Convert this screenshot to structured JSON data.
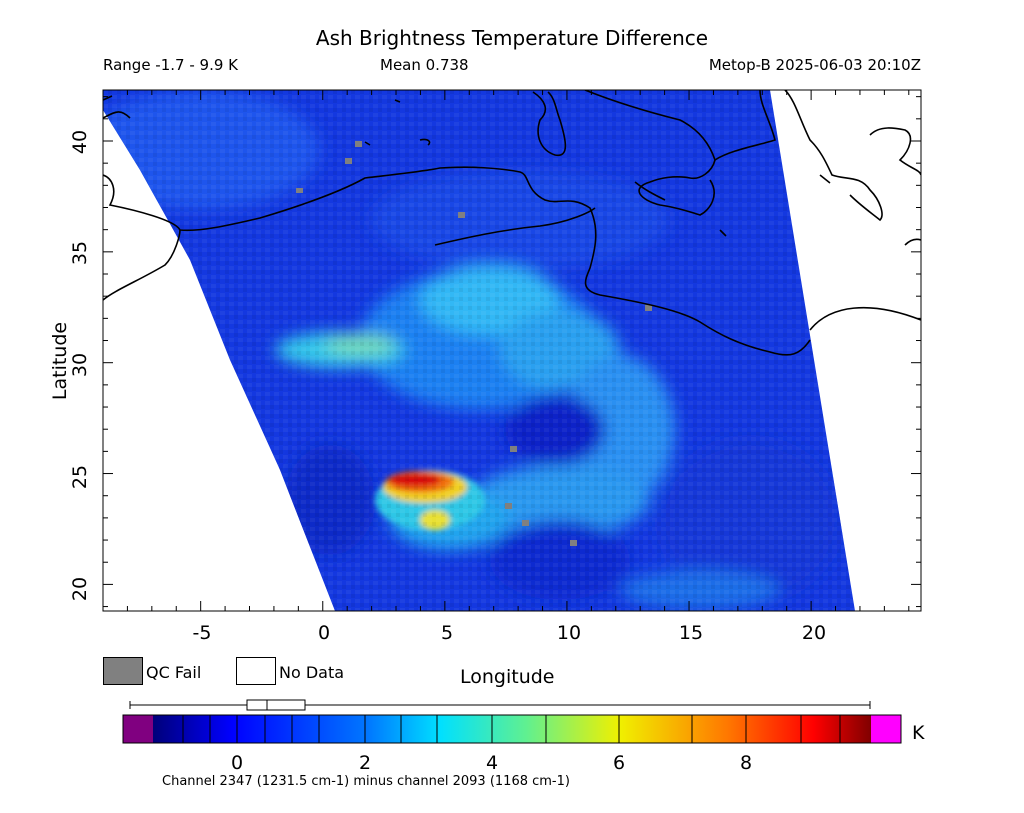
{
  "title": "Ash Brightness Temperature Difference",
  "subtitle": {
    "range": "Range -1.7 - 9.9 K",
    "mean": "Mean 0.738",
    "satellite_time": "Metop-B 2025-06-03 20:10Z"
  },
  "axes": {
    "xlabel": "Longitude",
    "ylabel": "Latitude",
    "xticks": [
      "-5",
      "0",
      "5",
      "10",
      "15",
      "20"
    ],
    "yticks": [
      "40",
      "35",
      "30",
      "25",
      "20"
    ],
    "xrange": [
      -9,
      24.5
    ],
    "yrange": [
      18.8,
      42.3
    ]
  },
  "legend": {
    "qc_fail": "QC Fail",
    "no_data": "No Data",
    "qc_fail_color": "#808080",
    "no_data_color": "#ffffff"
  },
  "colorbar": {
    "ticks": [
      "0",
      "2",
      "4",
      "6",
      "8"
    ],
    "units": "K",
    "range": [
      -1.7,
      9.9
    ],
    "under_color": "#800080",
    "over_color": "#ff00ff",
    "boxplot": {
      "min": -1.7,
      "q1": -0.7,
      "median": -0.1,
      "q3": 1.4,
      "max": 9.9
    }
  },
  "caption": "Channel 2347 (1231.5 cm-1) minus channel 2093 (1168 cm-1)",
  "features": [
    {
      "name": "ash-plume",
      "lon": 5.0,
      "lat": 24.5,
      "value": 9.5
    },
    {
      "name": "elevated-band",
      "lon": 2.0,
      "lat": 30.7,
      "value": 4.0
    },
    {
      "name": "dust-arc",
      "lon": 8.0,
      "lat": 31.5,
      "value": 3.0
    }
  ]
}
